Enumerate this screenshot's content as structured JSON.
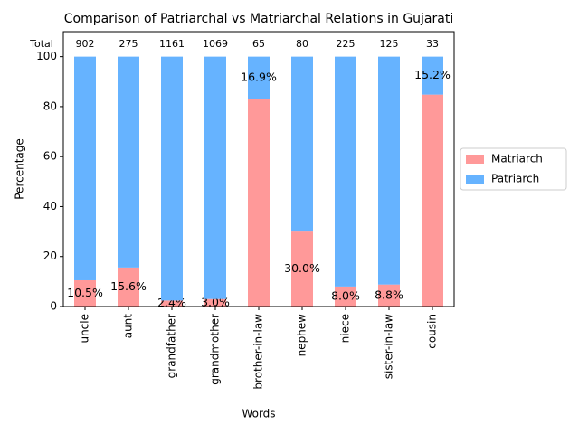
{
  "chart_data": {
    "type": "stacked_bar",
    "title": "Comparison of Patriarchal vs Matriarchal Relations in Gujarati",
    "x_label": "Words",
    "y_label": "Percentage",
    "categories": [
      "uncle",
      "aunt",
      "grandfather",
      "grandmother",
      "brother-in-law",
      "nephew",
      "niece",
      "sister-in-law",
      "cousin"
    ],
    "series": [
      {
        "name": "Matriarch",
        "color": "#ff9999",
        "values": [
          10.5,
          15.6,
          2.4,
          3.0,
          83.1,
          30.0,
          8.0,
          8.8,
          84.8
        ],
        "value_labels": [
          "10.5%",
          "15.6%",
          "2.4%",
          "3.0%",
          null,
          "30.0%",
          "8.0%",
          "8.8%",
          null
        ]
      },
      {
        "name": "Patriarch",
        "color": "#66b3ff",
        "values": [
          89.5,
          84.4,
          97.6,
          97.0,
          16.9,
          70.0,
          92.0,
          91.2,
          15.2
        ],
        "value_labels": [
          null,
          null,
          null,
          null,
          "16.9%",
          null,
          null,
          null,
          "15.2%"
        ]
      }
    ],
    "totals": {
      "label": "Total",
      "values": [
        902,
        275,
        1161,
        1069,
        65,
        80,
        225,
        125,
        33
      ]
    },
    "ylim": [
      0,
      110
    ],
    "yticks": [
      0,
      20,
      40,
      60,
      80,
      100
    ],
    "legend": "right"
  }
}
